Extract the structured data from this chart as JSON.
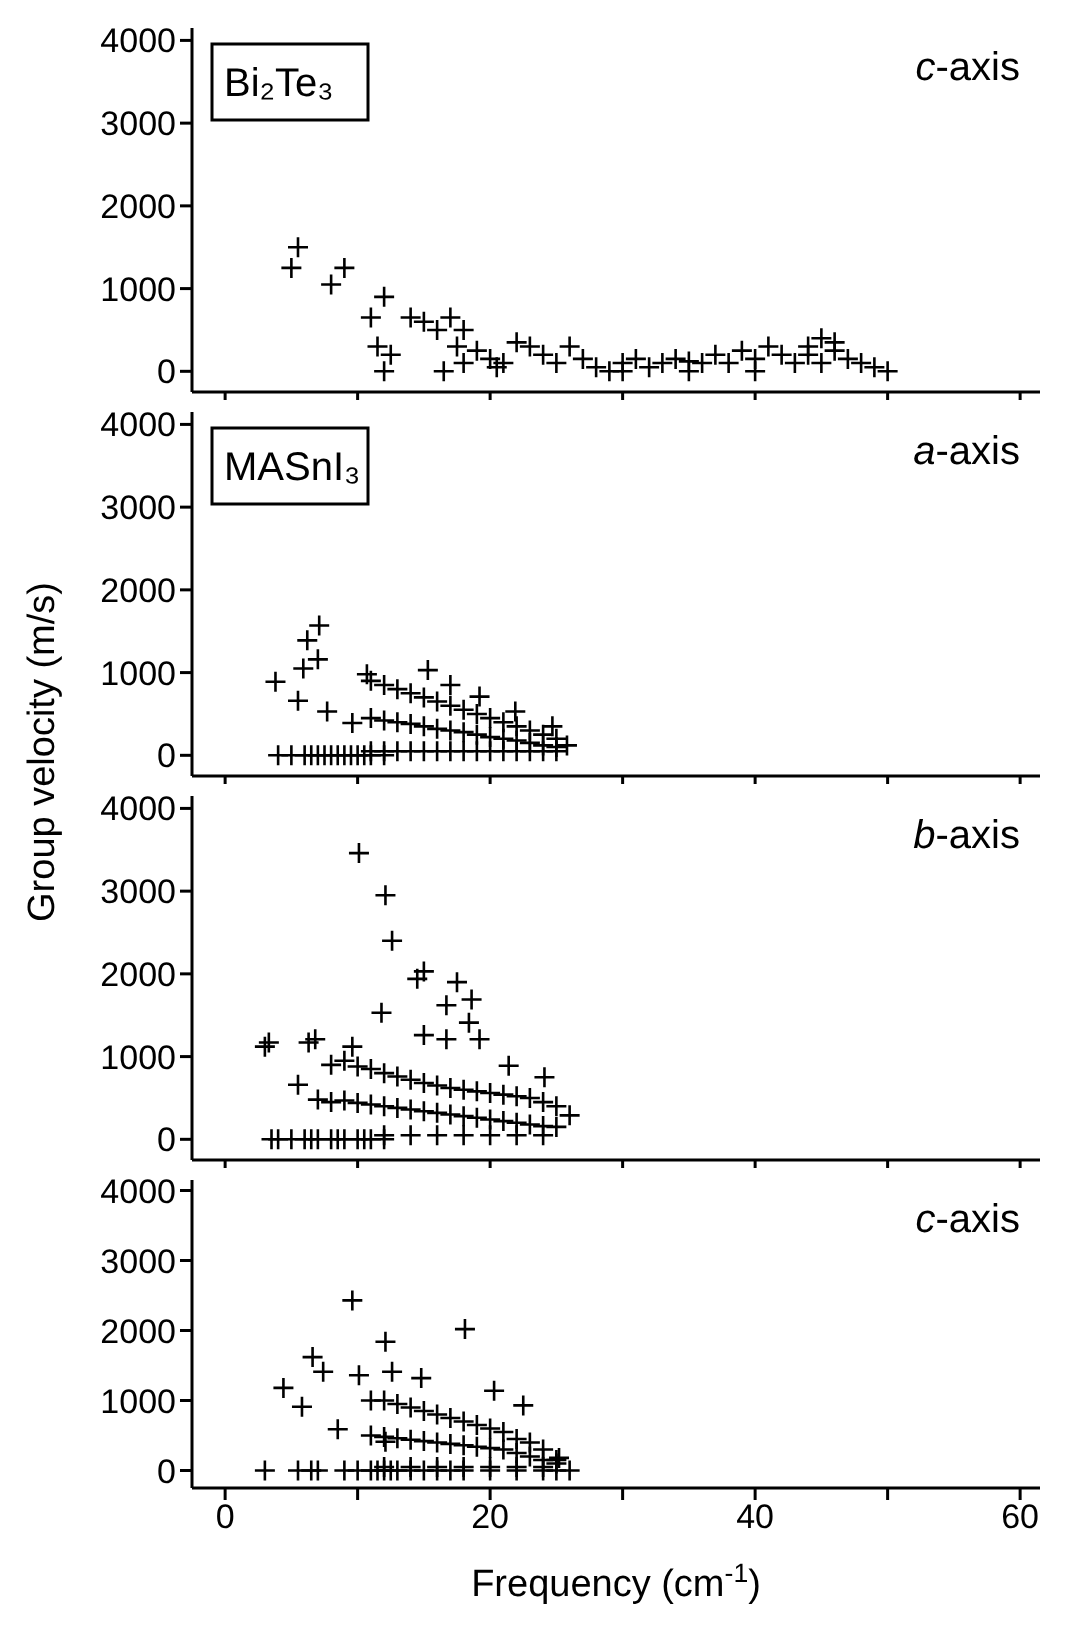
{
  "chart_data": [
    {
      "type": "scatter",
      "annotations": [
        "Bi₂Te₃",
        "c-axis"
      ],
      "ylabel": "Group velocity (m/s)",
      "xlim": [
        -2.5,
        61.5
      ],
      "ylim": [
        -250,
        4150
      ],
      "xticks": [
        0,
        {
          "value": 10,
          "label": null
        },
        20,
        {
          "value": 30,
          "label": null
        },
        40,
        {
          "value": 50,
          "label": null
        },
        60
      ],
      "yticks": [
        0,
        1000,
        2000,
        3000,
        4000
      ],
      "tick_labels": "y",
      "grid": false,
      "legend": false,
      "marker": "cross",
      "series": [
        {
          "color": "#000000",
          "x": [
            5,
            5.5,
            8,
            9,
            11,
            12,
            11.5,
            12.5,
            12,
            16.5,
            14,
            15,
            17,
            16,
            18,
            17.5,
            18,
            19,
            20,
            20.5,
            21,
            22,
            23,
            24,
            25,
            26,
            27,
            28,
            29,
            30,
            31,
            32,
            33,
            34,
            35,
            36,
            37,
            38,
            39,
            40,
            41,
            42,
            43,
            44,
            45,
            46,
            47,
            48,
            49,
            50,
            30,
            35,
            40,
            45,
            44,
            46
          ],
          "values": [
            1250,
            1500,
            1050,
            1250,
            650,
            900,
            300,
            200,
            0,
            0,
            650,
            600,
            650,
            500,
            100,
            300,
            500,
            250,
            150,
            50,
            100,
            350,
            300,
            200,
            100,
            300,
            150,
            50,
            0,
            100,
            150,
            50,
            100,
            150,
            0,
            100,
            200,
            100,
            250,
            150,
            300,
            200,
            100,
            300,
            400,
            250,
            150,
            100,
            50,
            0,
            0,
            120,
            0,
            100,
            200,
            350
          ]
        }
      ]
    },
    {
      "type": "scatter",
      "annotations": [
        "MASnI₃",
        "a-axis"
      ],
      "xlim": [
        -2.5,
        61.5
      ],
      "ylim": [
        -250,
        4150
      ],
      "xticks": [
        0,
        {
          "value": 10,
          "label": null
        },
        20,
        {
          "value": 30,
          "label": null
        },
        40,
        {
          "value": 50,
          "label": null
        },
        60
      ],
      "yticks": [
        0,
        1000,
        2000,
        3000,
        4000
      ],
      "tick_labels": "y",
      "grid": false,
      "legend": false,
      "marker": "cross",
      "series": [
        {
          "color": "#000000",
          "x": [
            5.9,
            7.1,
            6.2,
            7,
            3.8,
            5.5,
            7.7,
            9.6,
            10.7,
            15.3,
            17,
            19.2,
            21.9,
            24.7,
            25.8,
            4,
            5,
            6,
            6.5,
            7,
            7.5,
            8,
            8.5,
            9,
            9.5,
            10,
            10.5,
            11,
            12,
            11,
            12,
            13,
            14,
            15,
            16,
            17,
            18,
            19,
            20,
            21,
            22,
            23,
            24,
            25,
            11,
            12,
            13,
            14,
            15,
            16,
            17,
            18,
            19,
            20,
            21,
            22,
            23,
            24,
            25,
            11,
            12,
            13,
            14,
            15,
            16,
            17,
            18,
            19,
            20,
            21,
            22,
            23,
            24,
            25
          ],
          "values": [
            1050,
            1570,
            1390,
            1160,
            890,
            660,
            530,
            390,
            980,
            1030,
            850,
            710,
            530,
            350,
            120,
            0,
            0,
            0,
            0,
            0,
            0,
            0,
            0,
            0,
            0,
            0,
            0,
            0,
            0,
            900,
            850,
            800,
            750,
            700,
            650,
            600,
            550,
            500,
            450,
            400,
            350,
            300,
            250,
            200,
            450,
            420,
            400,
            380,
            350,
            320,
            300,
            280,
            250,
            220,
            200,
            180,
            150,
            120,
            100,
            50,
            50,
            50,
            50,
            50,
            50,
            50,
            50,
            50,
            50,
            50,
            50,
            50,
            50,
            50
          ]
        }
      ]
    },
    {
      "type": "scatter",
      "annotations": [
        "b-axis"
      ],
      "xlim": [
        -2.5,
        61.5
      ],
      "ylim": [
        -250,
        4150
      ],
      "xticks": [
        0,
        {
          "value": 10,
          "label": null
        },
        20,
        {
          "value": 30,
          "label": null
        },
        40,
        {
          "value": 50,
          "label": null
        },
        60
      ],
      "yticks": [
        0,
        1000,
        2000,
        3000,
        4000
      ],
      "tick_labels": "y",
      "grid": false,
      "legend": false,
      "marker": "cross",
      "series": [
        {
          "color": "#000000",
          "x": [
            10.1,
            12.1,
            12.6,
            14.5,
            15,
            11.8,
            17.5,
            18.6,
            16.7,
            18.4,
            19.2,
            16.7,
            15,
            3.3,
            3,
            6.3,
            6.8,
            5.5,
            7,
            9.6,
            21.4,
            24.1,
            26,
            3.5,
            4,
            5,
            6,
            6.5,
            7,
            8,
            8.5,
            9,
            10,
            10.5,
            11,
            12,
            8,
            9,
            10,
            11,
            12,
            13,
            14,
            15,
            16,
            17,
            18,
            19,
            20,
            21,
            22,
            23,
            24,
            25,
            8,
            9,
            10,
            11,
            12,
            13,
            14,
            15,
            16,
            17,
            18,
            19,
            20,
            21,
            22,
            23,
            24,
            25,
            12,
            14,
            16,
            18,
            20,
            22,
            24
          ],
          "values": [
            3460,
            2950,
            2400,
            1940,
            2030,
            1530,
            1900,
            1690,
            1620,
            1410,
            1210,
            1210,
            1260,
            1170,
            1120,
            1170,
            1210,
            660,
            480,
            1120,
            890,
            750,
            290,
            0,
            0,
            0,
            0,
            0,
            0,
            0,
            0,
            0,
            0,
            0,
            0,
            0,
            900,
            950,
            880,
            850,
            800,
            760,
            720,
            680,
            650,
            620,
            600,
            580,
            560,
            540,
            520,
            500,
            450,
            400,
            450,
            470,
            440,
            420,
            400,
            380,
            360,
            340,
            320,
            300,
            280,
            260,
            240,
            220,
            200,
            180,
            160,
            150,
            50,
            50,
            50,
            50,
            50,
            50,
            50
          ]
        }
      ]
    },
    {
      "type": "scatter",
      "annotations": [
        "c-axis"
      ],
      "xlabel": "Frequency (cm$^{-1}$)",
      "xlim": [
        -2.5,
        61.5
      ],
      "ylim": [
        -250,
        4150
      ],
      "xticks": [
        0,
        {
          "value": 10,
          "label": null
        },
        20,
        {
          "value": 30,
          "label": null
        },
        40,
        {
          "value": 50,
          "label": null
        },
        60
      ],
      "yticks": [
        0,
        1000,
        2000,
        3000,
        4000
      ],
      "grid": false,
      "legend": false,
      "marker": "cross",
      "series": [
        {
          "color": "#000000",
          "x": [
            9.6,
            18.1,
            12.1,
            6.6,
            7.4,
            4.4,
            5.8,
            8.5,
            10.1,
            12.6,
            14.8,
            20.3,
            22.5,
            12.1,
            25.2,
            26,
            3,
            5.5,
            6.5,
            7,
            9,
            10,
            11,
            11.5,
            12,
            12.5,
            13,
            14,
            15,
            16,
            17,
            18,
            20,
            22,
            24,
            25,
            11,
            12,
            13,
            14,
            15,
            16,
            17,
            18,
            19,
            20,
            21,
            22,
            23,
            24,
            25,
            11,
            12,
            13,
            14,
            15,
            16,
            17,
            18,
            19,
            20,
            21,
            22,
            23,
            24,
            25,
            12,
            14,
            16,
            18,
            20,
            22,
            24
          ],
          "values": [
            2430,
            2020,
            1840,
            1620,
            1410,
            1180,
            910,
            590,
            1360,
            1410,
            1320,
            1140,
            930,
            410,
            180,
            0,
            0,
            0,
            0,
            0,
            0,
            0,
            0,
            0,
            0,
            0,
            0,
            0,
            0,
            0,
            0,
            0,
            0,
            0,
            0,
            0,
            1000,
            1000,
            950,
            900,
            850,
            800,
            750,
            700,
            650,
            600,
            550,
            450,
            400,
            300,
            150,
            500,
            480,
            460,
            440,
            420,
            400,
            380,
            360,
            340,
            320,
            300,
            250,
            200,
            150,
            100,
            50,
            50,
            50,
            50,
            50,
            50,
            50
          ]
        }
      ]
    }
  ]
}
